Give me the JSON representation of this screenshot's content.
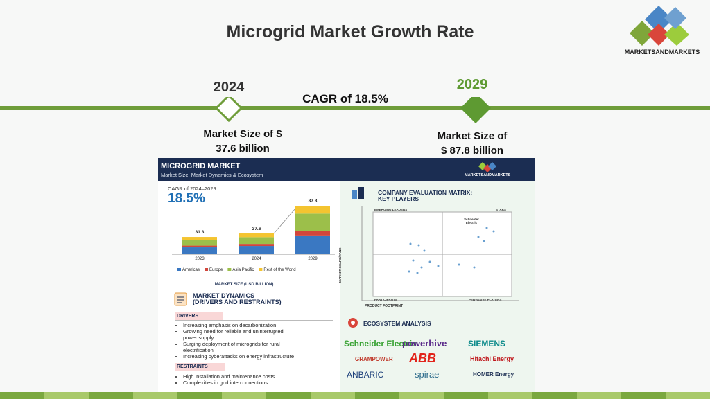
{
  "header": {
    "title": "Microgrid Market Growth Rate",
    "logo": "MARKETSANDMARKETS"
  },
  "timeline": {
    "start_year": "2024",
    "end_year": "2029",
    "cagr": "CAGR of 18.5%",
    "start_size": [
      "Market Size of $",
      "37.6 billion"
    ],
    "end_size": [
      "Market Size of",
      "$ 87.8 billion"
    ]
  },
  "infographic": {
    "title": "MICROGRID MARKET",
    "subtitle": "Market Size, Market Dynamics & Ecosystem",
    "logo": "MARKETSANDMARKETS",
    "cagr_label": "CAGR of 2024–2029",
    "cagr_value": "18.5%",
    "dynamics": {
      "title": [
        "MARKET DYNAMICS",
        "(DRIVERS AND RESTRAINTS)"
      ],
      "drivers_label": "DRIVERS",
      "drivers": [
        "Increasing emphasis on decarbonization",
        "Growing need for reliable and uninterrupted power supply",
        "Surging deployment of microgrids for rural electrification",
        "Increasing cyberattacks on energy infrastructure"
      ],
      "restraints_label": "RESTRAINTS",
      "restraints": [
        "High installation and maintenance costs",
        "Complexities in grid interconnections"
      ]
    },
    "matrix": {
      "title": [
        "COMPANY EVALUATION MATRIX:",
        "KEY PLAYERS"
      ],
      "quadrants": [
        "EMERGING LEADERS",
        "STARS",
        "PARTICIPANTS",
        "PERVASIVE PLAYERS"
      ],
      "y_label": "MARKET SHARE/RANK",
      "x_label": "PRODUCT FOOTPRINT",
      "highlight": [
        "Schneider",
        "Electric"
      ]
    },
    "ecosystem": {
      "title": "ECOSYSTEM ANALYSIS",
      "companies": [
        "Schneider Electric",
        "powerhive",
        "SIEMENS",
        "GRAMPOWER",
        "ABB",
        "Hitachi Energy",
        "ANBARIC",
        "spirae",
        "HOMER Energy"
      ]
    }
  },
  "chart_data": {
    "type": "bar",
    "stacked": true,
    "categories": [
      "2023",
      "2024",
      "2029"
    ],
    "series": [
      {
        "name": "Americas",
        "color": "#3a78c2",
        "values": [
          12.5,
          15,
          34
        ]
      },
      {
        "name": "Europe",
        "color": "#d2463c",
        "values": [
          3.1,
          3.7,
          7.6
        ]
      },
      {
        "name": "Asia Pacific",
        "color": "#9cbf4a",
        "values": [
          10.2,
          12.2,
          32
        ]
      },
      {
        "name": "Rest of the World",
        "color": "#f4c430",
        "values": [
          5.5,
          6.7,
          14.2
        ]
      }
    ],
    "totals": [
      31.3,
      37.6,
      87.8
    ],
    "xlabel": "MARKET SIZE (USD BILLION)"
  }
}
